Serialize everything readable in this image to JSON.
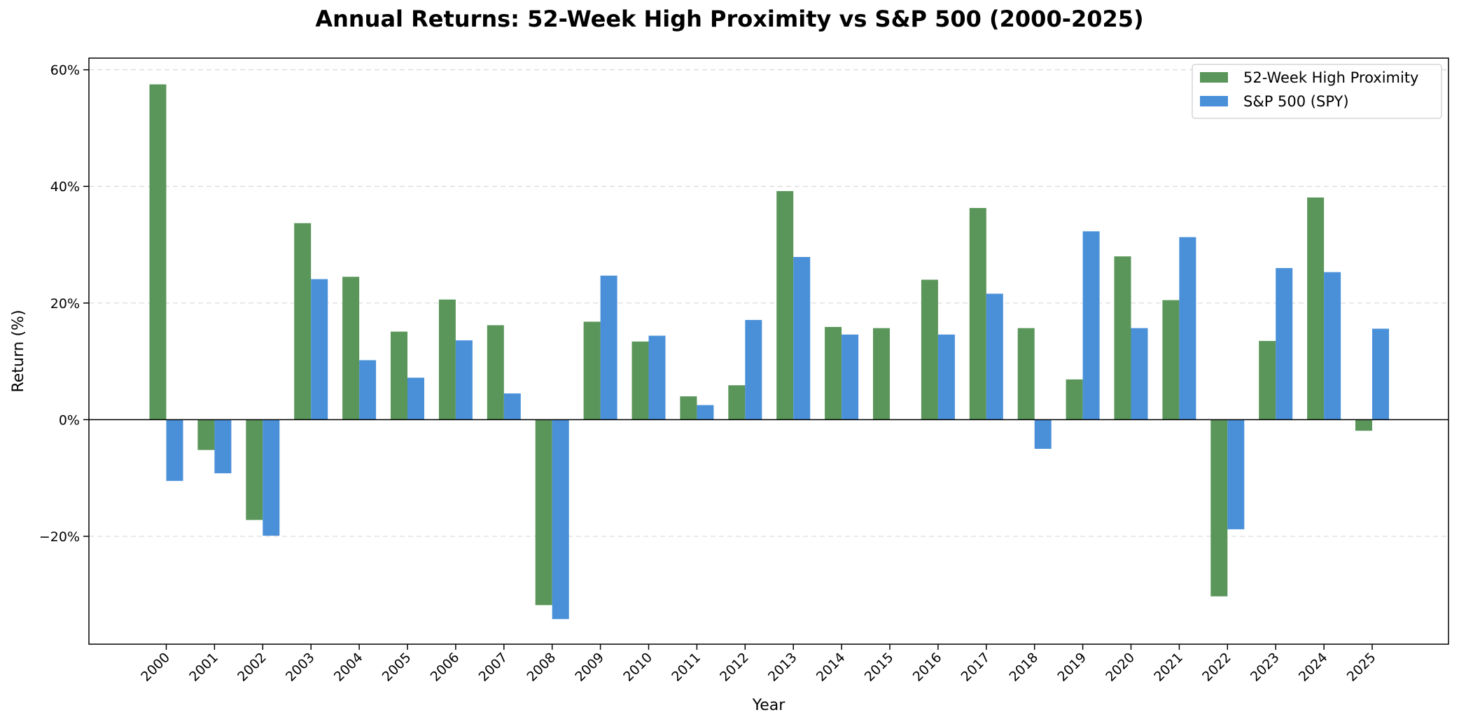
{
  "chart_data": {
    "type": "bar",
    "title": "Annual Returns: 52-Week High Proximity vs S&P 500 (2000-2025)",
    "xlabel": "Year",
    "ylabel": "Return (%)",
    "ylim": [
      -38.5,
      62
    ],
    "yticks": [
      -20,
      0,
      20,
      40,
      60
    ],
    "ytick_labels": [
      "−20%",
      "0%",
      "20%",
      "40%",
      "60%"
    ],
    "grid": "y, dashed",
    "legend_position": "top-right",
    "categories": [
      "2000",
      "2001",
      "2002",
      "2003",
      "2004",
      "2005",
      "2006",
      "2007",
      "2008",
      "2009",
      "2010",
      "2011",
      "2012",
      "2013",
      "2014",
      "2015",
      "2016",
      "2017",
      "2018",
      "2019",
      "2020",
      "2021",
      "2022",
      "2023",
      "2024",
      "2025"
    ],
    "series": [
      {
        "name": "52-Week High Proximity",
        "color": "#5a965a",
        "values": [
          57.5,
          -5.2,
          -17.2,
          33.7,
          24.5,
          15.1,
          20.6,
          16.2,
          -31.8,
          16.8,
          13.4,
          4.0,
          5.9,
          39.2,
          15.9,
          15.7,
          24.0,
          36.3,
          15.7,
          6.9,
          28.0,
          20.5,
          -30.3,
          13.5,
          38.1,
          -1.9
        ]
      },
      {
        "name": "S&P 500 (SPY)",
        "color": "#4a90d9",
        "values": [
          -10.5,
          -9.2,
          -19.9,
          24.1,
          10.2,
          7.2,
          13.6,
          4.5,
          -34.2,
          24.7,
          14.4,
          2.5,
          17.1,
          27.9,
          14.6,
          0.0,
          14.6,
          21.6,
          -5.0,
          32.3,
          15.7,
          31.3,
          -18.8,
          26.0,
          25.3,
          15.6
        ]
      }
    ]
  }
}
